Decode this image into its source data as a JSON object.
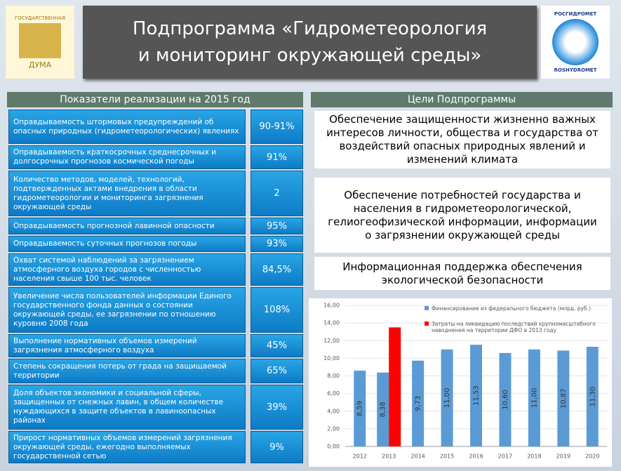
{
  "header": {
    "title": "Подпрограмма «Гидрометеорология и мониторинг окружающей среды»"
  },
  "logos": {
    "left": [
      "ГОСУДАРСТВЕННАЯ",
      "ДУМА"
    ],
    "right": [
      "РОСГИДРОМЕТ",
      "ROSHYDROMET"
    ]
  },
  "indicators": {
    "title": "Показатели реализации на 2015 год",
    "rows": [
      [
        "Оправдываемость штормовых предупреждений об опасных природных (гидрометеорологических) явлениях",
        "90-91%"
      ],
      [
        "Оправдываемость краткосрочных среднесрочных и долгосрочных прогнозов космической погоды",
        "91%"
      ],
      [
        "Количество методов, моделей, технологий, подтвержденных актами внедрения в области гидрометеорологии и мониторинга загрязнения окружающей среды",
        "2"
      ],
      [
        "Оправдываемость прогнозной лавинной опасности",
        "95%"
      ],
      [
        "Оправдываемость суточных прогнозов погоды",
        "93%"
      ],
      [
        "Охват системой наблюдений за загрязнением атмосферного воздуха городов с численностью населения свыше 100 тыс. человек",
        "84,5%"
      ],
      [
        "Увеличение числа пользователей информации Единого государственного фонда данных о состоянии окружающей среды, ее загрязнении по отношению куровню 2008 года",
        "108%"
      ],
      [
        "Выполнение нормативных объемов измерений загрязнения атмосферного воздуха",
        "45%"
      ],
      [
        "Степень сокращения потерь от града на защищаемой территории",
        "65%"
      ],
      [
        "Доля объектов экономики и социальной сферы, защищенных от снежных лавин, в общем количестве нуждающихся в защите объектов в лавиноопасных районах",
        "39%"
      ],
      [
        "Прирост нормативных объемов измерений загрязнения окружающей среды, ежегодно выполняемых государственной сетью",
        "9%"
      ]
    ]
  },
  "goals": {
    "title": "Цели Подпрограммы",
    "items": [
      "Обеспечение защищенности жизненно важных интересов личности, общества и государства от воздействий опасных природных явлений и изменений климата",
      "Обеспечение потребностей государства и населения в гидрометеорологической, гелиогеофизической информации, информации о загрязнении окружающей среды",
      "Информационная поддержка обеспечения экологической безопасности"
    ]
  },
  "chart_data": {
    "type": "bar",
    "categories": [
      "2012",
      "2013",
      "2014",
      "2015",
      "2016",
      "2017",
      "2018",
      "2019",
      "2020"
    ],
    "series": [
      {
        "name": "Финансирование из федерального бюджета (млрд. руб.)",
        "color": "#5b9bd5",
        "values": [
          8.59,
          8.38,
          9.73,
          11.0,
          11.53,
          10.6,
          11.0,
          10.87,
          11.3
        ],
        "value_labels": [
          "8,59",
          "8,38",
          "9,73",
          "11,00",
          "11,53",
          "10,60",
          "11,00",
          "10,87",
          "11,30"
        ]
      },
      {
        "name": "Затраты на ликвидацию последствий крупномасштабного наводнения на территории ДФО в 2013 году",
        "color": "#ff0000",
        "values": [
          null,
          13.5,
          null,
          null,
          null,
          null,
          null,
          null,
          null
        ]
      }
    ],
    "ylim": [
      0,
      16
    ],
    "yticks": [
      {
        "value": 0,
        "label": "0,00"
      },
      {
        "value": 2,
        "label": "2,00"
      },
      {
        "value": 4,
        "label": "4,00"
      },
      {
        "value": 6,
        "label": "6,00"
      },
      {
        "value": 8,
        "label": "8,00"
      },
      {
        "value": 10,
        "label": "10,00"
      },
      {
        "value": 12,
        "label": "12,00"
      },
      {
        "value": 14,
        "label": "14,00"
      },
      {
        "value": 16,
        "label": "16,00"
      }
    ],
    "grid": true
  }
}
